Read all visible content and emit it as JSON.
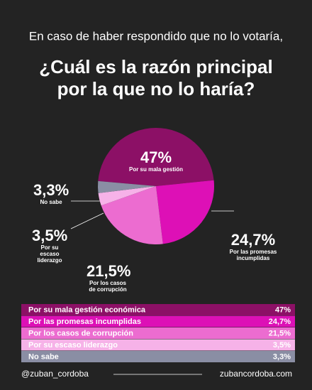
{
  "chart_data": {
    "type": "pie",
    "subtitle": "En caso de haber respondido que no lo votaría,",
    "title": [
      "¿Cuál es la razón principal",
      "por la que no lo haría?"
    ],
    "categories": [
      "Por su mala gestión económica",
      "Por las promesas incumplidas",
      "Por los casos de corrupción",
      "Por su escaso liderazgo",
      "No sabe"
    ],
    "slice_labels": [
      "Por su mala gestión",
      "Por las promesas incumplidas",
      "Por los casos de corrupción",
      "Por su escaso liderazgo",
      "No sabe"
    ],
    "values": [
      47,
      24.7,
      21.5,
      3.5,
      3.3
    ],
    "value_labels": [
      "47%",
      "24,7%",
      "21,5%",
      "3,5%",
      "3,3%"
    ],
    "colors": [
      "#8c1066",
      "#dd10b6",
      "#ec6cd0",
      "#f6b2e8",
      "#8a8ea4"
    ]
  },
  "footer": {
    "handle": "@zuban_cordoba",
    "site": "zubancordoba.com"
  }
}
